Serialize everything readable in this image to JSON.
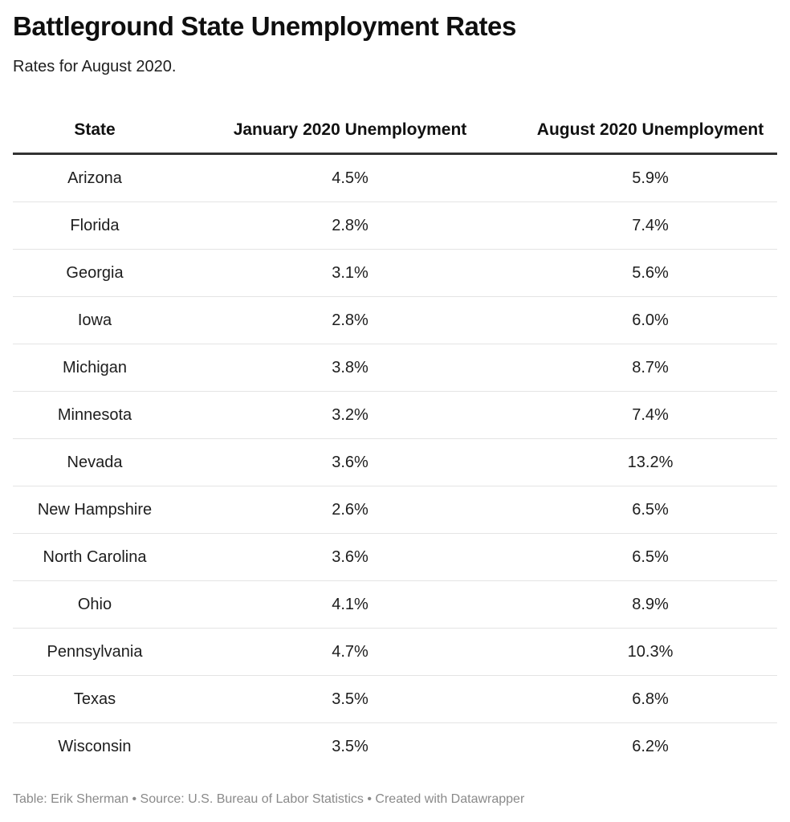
{
  "chart_data": {
    "type": "table",
    "title": "Battleground State Unemployment Rates",
    "subtitle": "Rates for August 2020.",
    "columns": [
      "State",
      "January 2020 Unemployment",
      "August 2020 Unemployment"
    ],
    "rows": [
      [
        "Arizona",
        "4.5%",
        "5.9%"
      ],
      [
        "Florida",
        "2.8%",
        "7.4%"
      ],
      [
        "Georgia",
        "3.1%",
        "5.6%"
      ],
      [
        "Iowa",
        "2.8%",
        "6.0%"
      ],
      [
        "Michigan",
        "3.8%",
        "8.7%"
      ],
      [
        "Minnesota",
        "3.2%",
        "7.4%"
      ],
      [
        "Nevada",
        "3.6%",
        "13.2%"
      ],
      [
        "New Hampshire",
        "2.6%",
        "6.5%"
      ],
      [
        "North Carolina",
        "3.6%",
        "6.5%"
      ],
      [
        "Ohio",
        "4.1%",
        "8.9%"
      ],
      [
        "Pennsylvania",
        "4.7%",
        "10.3%"
      ],
      [
        "Texas",
        "3.5%",
        "6.8%"
      ],
      [
        "Wisconsin",
        "3.5%",
        "6.2%"
      ]
    ],
    "footer": "Table: Erik Sherman • Source: U.S. Bureau of Labor Statistics • Created with Datawrapper"
  }
}
